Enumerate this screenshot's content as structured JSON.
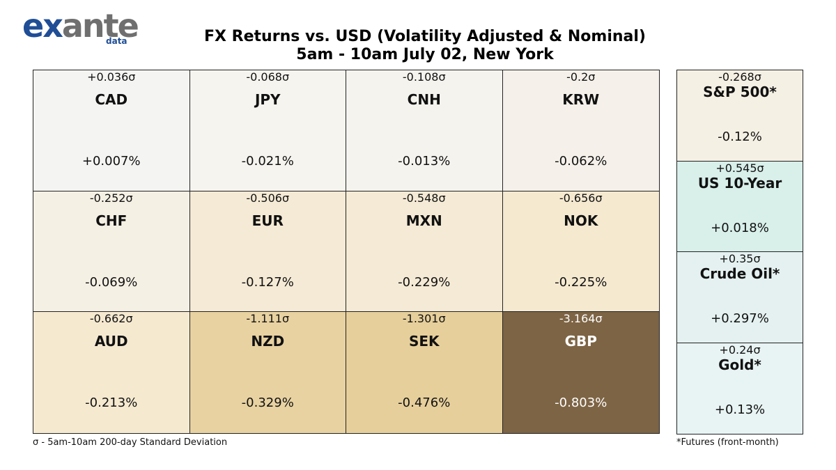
{
  "logo": {
    "ex": "ex",
    "ante": "ante",
    "sub": "data"
  },
  "title_line1": "FX Returns vs. USD (Volatility Adjusted & Nominal)",
  "title_line2": "5am - 10am July 02, New York",
  "chart_data": {
    "type": "table",
    "fx": [
      {
        "name": "CAD",
        "sigma": "+0.036σ",
        "pct": "+0.007%",
        "color": "#f4f5f3"
      },
      {
        "name": "JPY",
        "sigma": "-0.068σ",
        "pct": "-0.021%",
        "color": "#f5f4ef"
      },
      {
        "name": "CNH",
        "sigma": "-0.108σ",
        "pct": "-0.013%",
        "color": "#f5f3ee"
      },
      {
        "name": "KRW",
        "sigma": "-0.2σ",
        "pct": "-0.062%",
        "color": "#f5f1ea"
      },
      {
        "name": "CHF",
        "sigma": "-0.252σ",
        "pct": "-0.069%",
        "color": "#f5f0e4"
      },
      {
        "name": "EUR",
        "sigma": "-0.506σ",
        "pct": "-0.127%",
        "color": "#f5ead5"
      },
      {
        "name": "MXN",
        "sigma": "-0.548σ",
        "pct": "-0.229%",
        "color": "#f5ead5"
      },
      {
        "name": "NOK",
        "sigma": "-0.656σ",
        "pct": "-0.225%",
        "color": "#f5e9d0"
      },
      {
        "name": "AUD",
        "sigma": "-0.662σ",
        "pct": "-0.213%",
        "color": "#f5e9d0"
      },
      {
        "name": "NZD",
        "sigma": "-1.111σ",
        "pct": "-0.329%",
        "color": "#e8d2a1"
      },
      {
        "name": "SEK",
        "sigma": "-1.301σ",
        "pct": "-0.476%",
        "color": "#e6cf9b"
      },
      {
        "name": "GBP",
        "sigma": "-3.164σ",
        "pct": "-0.803%",
        "color": "#7d6444",
        "text_color": "#ffffff"
      }
    ],
    "other": [
      {
        "name": "S&P 500*",
        "sigma": "-0.268σ",
        "pct": "-0.12%",
        "color": "#f5f0e4"
      },
      {
        "name": "US 10-Year",
        "sigma": "+0.545σ",
        "pct": "+0.018%",
        "color": "#d8efea"
      },
      {
        "name": "Crude Oil*",
        "sigma": "+0.35σ",
        "pct": "+0.297%",
        "color": "#e4f1f0"
      },
      {
        "name": "Gold*",
        "sigma": "+0.24σ",
        "pct": "+0.13%",
        "color": "#e8f3f3"
      }
    ]
  },
  "footnote_left": "σ - 5am-10am 200-day Standard Deviation",
  "footnote_right": "*Futures (front-month)"
}
